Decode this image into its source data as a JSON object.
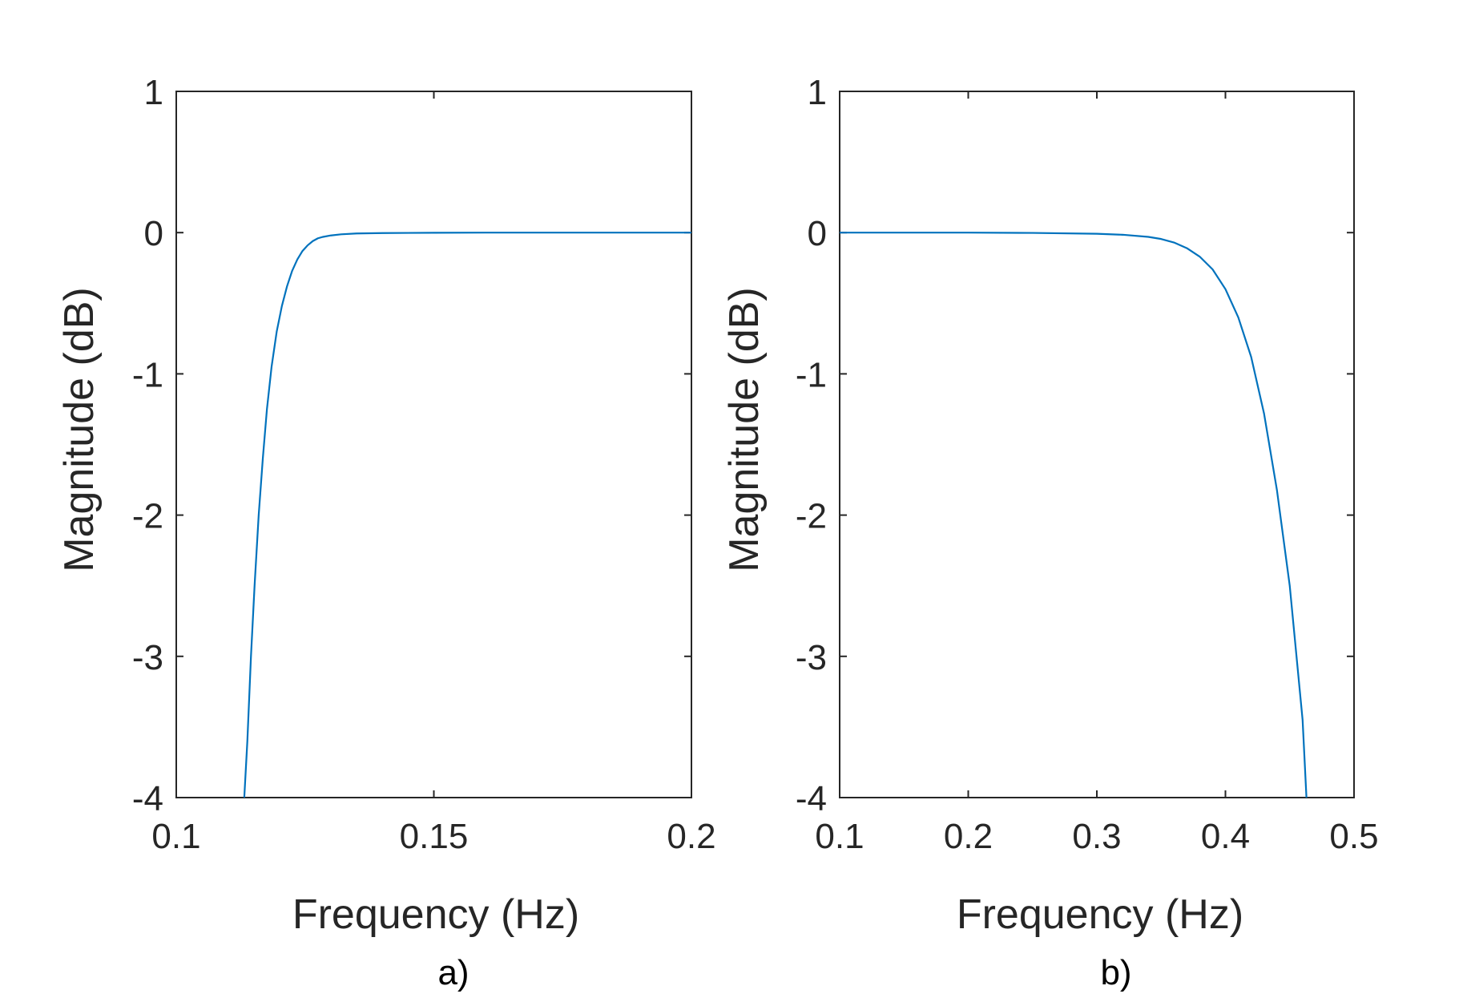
{
  "chart_data": [
    {
      "type": "line",
      "panel_label": "a)",
      "title": "",
      "xlabel": "Frequency (Hz)",
      "ylabel": "Magnitude (dB)",
      "xlim": [
        0.1,
        0.2
      ],
      "ylim": [
        -4,
        1
      ],
      "xticks": [
        0.1,
        0.15,
        0.2
      ],
      "xtick_labels": [
        "0.1",
        "0.15",
        "0.2"
      ],
      "yticks": [
        -4,
        -3,
        -2,
        -1,
        0,
        1
      ],
      "ytick_labels": [
        "-4",
        "-3",
        "-2",
        "-1",
        "0",
        "1"
      ],
      "grid": false,
      "line_color": "#0072BD",
      "series": [
        {
          "x": [
            0.1132,
            0.1138,
            0.1145,
            0.1152,
            0.116,
            0.1168,
            0.1176,
            0.1185,
            0.1195,
            0.1205,
            0.1215,
            0.1225,
            0.1235,
            0.1245,
            0.1255,
            0.1265,
            0.1275,
            0.1285,
            0.13,
            0.132,
            0.135,
            0.14,
            0.15,
            0.16,
            0.18,
            0.2
          ],
          "y": [
            -4.0,
            -3.6,
            -3.0,
            -2.5,
            -2.0,
            -1.6,
            -1.25,
            -0.95,
            -0.7,
            -0.52,
            -0.38,
            -0.27,
            -0.19,
            -0.13,
            -0.09,
            -0.06,
            -0.04,
            -0.03,
            -0.02,
            -0.012,
            -0.006,
            -0.003,
            -0.001,
            0.0,
            0.0,
            0.0
          ]
        }
      ]
    },
    {
      "type": "line",
      "panel_label": "b)",
      "title": "",
      "xlabel": "Frequency (Hz)",
      "ylabel": "Magnitude (dB)",
      "xlim": [
        0.1,
        0.5
      ],
      "ylim": [
        -4,
        1
      ],
      "xticks": [
        0.1,
        0.2,
        0.3,
        0.4,
        0.5
      ],
      "xtick_labels": [
        "0.1",
        "0.2",
        "0.3",
        "0.4",
        "0.5"
      ],
      "yticks": [
        -4,
        -3,
        -2,
        -1,
        0,
        1
      ],
      "ytick_labels": [
        "-4",
        "-3",
        "-2",
        "-1",
        "0",
        "1"
      ],
      "grid": false,
      "line_color": "#0072BD",
      "series": [
        {
          "x": [
            0.1,
            0.15,
            0.2,
            0.25,
            0.3,
            0.32,
            0.34,
            0.35,
            0.36,
            0.37,
            0.38,
            0.39,
            0.4,
            0.41,
            0.42,
            0.43,
            0.44,
            0.45,
            0.46,
            0.463
          ],
          "y": [
            0.0,
            0.0,
            0.0,
            -0.002,
            -0.008,
            -0.015,
            -0.03,
            -0.045,
            -0.07,
            -0.11,
            -0.17,
            -0.26,
            -0.4,
            -0.6,
            -0.88,
            -1.28,
            -1.82,
            -2.5,
            -3.45,
            -4.0
          ]
        }
      ]
    }
  ]
}
